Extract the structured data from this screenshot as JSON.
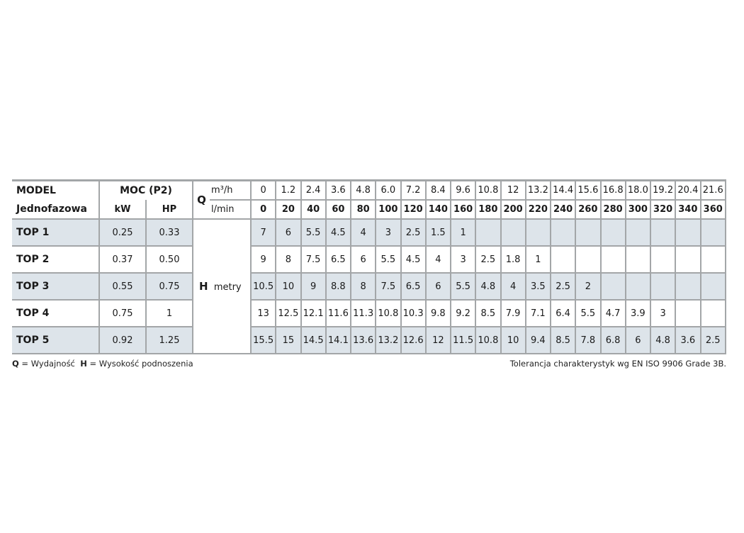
{
  "header": {
    "model": "MODEL",
    "model_sub": "Jednofazowa",
    "power": "MOC (P2)",
    "kw": "kW",
    "hp": "HP",
    "q_symbol": "Q",
    "q_unit_m3h": "m³/h",
    "q_unit_lmin": "l/min",
    "h_symbol": "H",
    "h_unit": "metry"
  },
  "q_m3h": [
    "0",
    "1.2",
    "2.4",
    "3.6",
    "4.8",
    "6.0",
    "7.2",
    "8.4",
    "9.6",
    "10.8",
    "12",
    "13.2",
    "14.4",
    "15.6",
    "16.8",
    "18.0",
    "19.2",
    "20.4",
    "21.6"
  ],
  "q_lmin": [
    "0",
    "20",
    "40",
    "60",
    "80",
    "100",
    "120",
    "140",
    "160",
    "180",
    "200",
    "220",
    "240",
    "260",
    "280",
    "300",
    "320",
    "340",
    "360"
  ],
  "rows": [
    {
      "model": "TOP 1",
      "kw": "0.25",
      "hp": "0.33",
      "h": [
        "7",
        "6",
        "5.5",
        "4.5",
        "4",
        "3",
        "2.5",
        "1.5",
        "1",
        "",
        "",
        "",
        "",
        "",
        "",
        "",
        "",
        "",
        ""
      ]
    },
    {
      "model": "TOP 2",
      "kw": "0.37",
      "hp": "0.50",
      "h": [
        "9",
        "8",
        "7.5",
        "6.5",
        "6",
        "5.5",
        "4.5",
        "4",
        "3",
        "2.5",
        "1.8",
        "1",
        "",
        "",
        "",
        "",
        "",
        "",
        ""
      ]
    },
    {
      "model": "TOP 3",
      "kw": "0.55",
      "hp": "0.75",
      "h": [
        "10.5",
        "10",
        "9",
        "8.8",
        "8",
        "7.5",
        "6.5",
        "6",
        "5.5",
        "4.8",
        "4",
        "3.5",
        "2.5",
        "2",
        "",
        "",
        "",
        "",
        ""
      ]
    },
    {
      "model": "TOP 4",
      "kw": "0.75",
      "hp": "1",
      "h": [
        "13",
        "12.5",
        "12.1",
        "11.6",
        "11.3",
        "10.8",
        "10.3",
        "9.8",
        "9.2",
        "8.5",
        "7.9",
        "7.1",
        "6.4",
        "5.5",
        "4.7",
        "3.9",
        "3",
        "",
        ""
      ]
    },
    {
      "model": "TOP 5",
      "kw": "0.92",
      "hp": "1.25",
      "h": [
        "15.5",
        "15",
        "14.5",
        "14.1",
        "13.6",
        "13.2",
        "12.6",
        "12",
        "11.5",
        "10.8",
        "10",
        "9.4",
        "8.5",
        "7.8",
        "6.8",
        "6",
        "4.8",
        "3.6",
        "2.5"
      ]
    }
  ],
  "footer": {
    "q_sym": "Q",
    "q_def": " = Wydajność",
    "h_sym": "H",
    "h_def": " = Wysokość podnoszenia",
    "tolerance": "Tolerancja charakterystyk wg EN ISO 9906 Grade 3B."
  },
  "colors": {
    "shade": "#dde4ea",
    "border": "#a3a6a8"
  }
}
